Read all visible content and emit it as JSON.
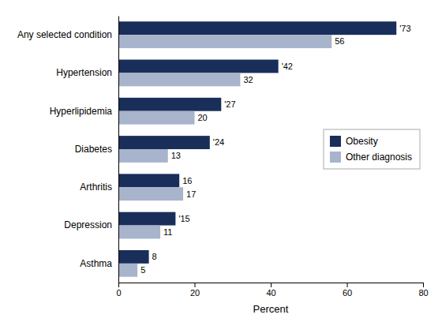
{
  "chart_data": {
    "type": "bar",
    "orientation": "horizontal",
    "categories": [
      "Any selected condition",
      "Hypertension",
      "Hyperlipidemia",
      "Diabetes",
      "Arthritis",
      "Depression",
      "Asthma"
    ],
    "series": [
      {
        "name": "Obesity",
        "color": "#1a2e5a",
        "values": [
          73,
          42,
          27,
          24,
          16,
          15,
          8
        ],
        "value_labels": [
          "'73",
          "'42",
          "'27",
          "'24",
          "16",
          "'15",
          "8"
        ]
      },
      {
        "name": "Other diagnosis",
        "color": "#a8b4cc",
        "values": [
          56,
          32,
          20,
          13,
          17,
          11,
          5
        ]
      }
    ],
    "xlabel": "Percent",
    "xlim": [
      0,
      80
    ],
    "xticks": [
      0,
      20,
      40,
      60,
      80
    ],
    "data_labels": true,
    "grid": false,
    "legend": "right"
  }
}
